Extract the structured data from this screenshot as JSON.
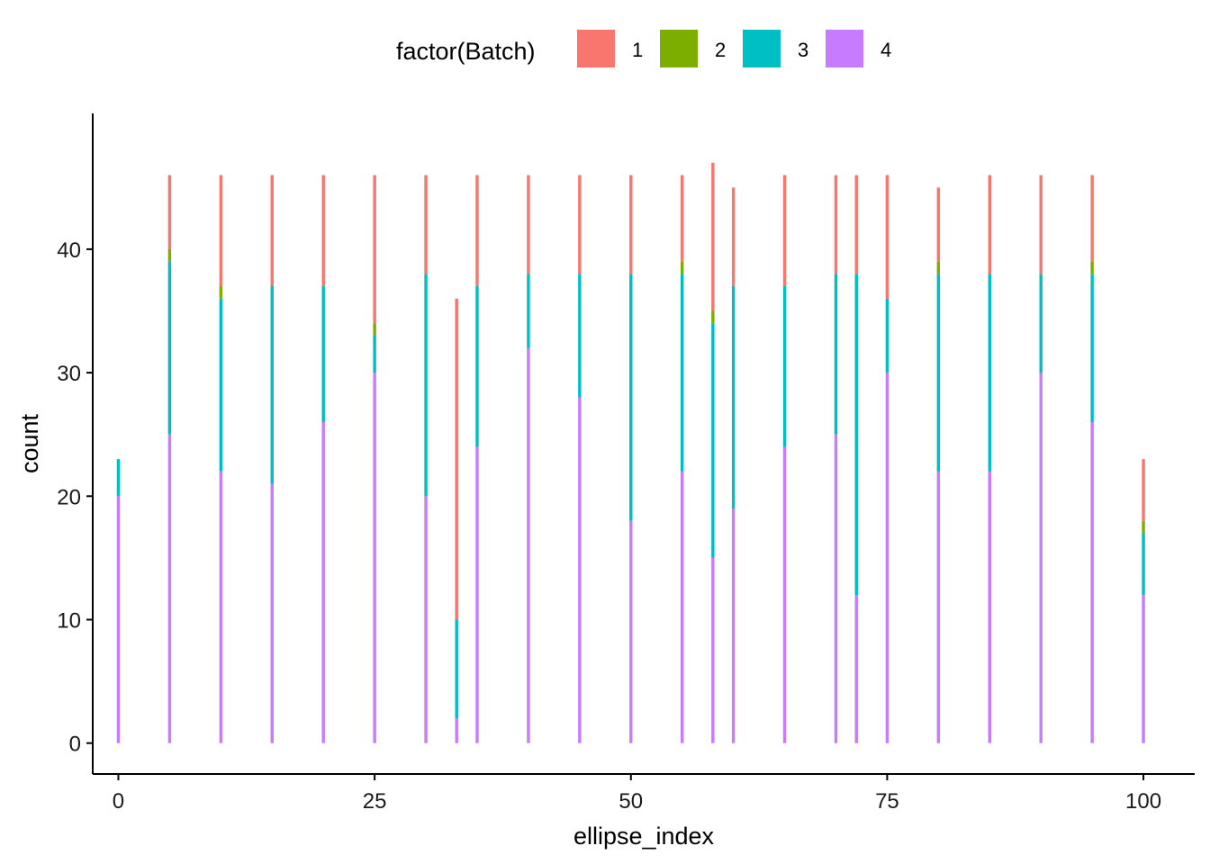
{
  "chart_data": {
    "type": "bar",
    "stacked": true,
    "xlabel": "ellipse_index",
    "ylabel": "count",
    "xlim": [
      -2.5,
      105
    ],
    "ylim": [
      -2.5,
      51
    ],
    "x_ticks": [
      0,
      25,
      50,
      75,
      100
    ],
    "y_ticks": [
      0,
      10,
      20,
      30,
      40
    ],
    "x_tick_labels": [
      "0",
      "25",
      "50",
      "75",
      "100"
    ],
    "y_tick_labels": [
      "0",
      "10",
      "20",
      "30",
      "40"
    ],
    "bin_width": 0.3,
    "grid": false,
    "legend": {
      "title": "factor(Batch)",
      "position": "top",
      "entries": [
        {
          "label": "1",
          "color": "#F8766D"
        },
        {
          "label": "2",
          "color": "#7CAE00"
        },
        {
          "label": "3",
          "color": "#00BFC4"
        },
        {
          "label": "4",
          "color": "#C77CFF"
        }
      ]
    },
    "x": [
      0,
      5,
      10,
      15,
      20,
      25,
      30,
      33,
      35,
      40,
      45,
      50,
      55,
      58,
      60,
      65,
      70,
      72,
      75,
      80,
      85,
      90,
      95,
      100
    ],
    "series": [
      {
        "name": "4",
        "color": "#C77CFF",
        "values": [
          20,
          25,
          22,
          21,
          26,
          30,
          20,
          2,
          24,
          32,
          28,
          18,
          22,
          15,
          19,
          24,
          25,
          12,
          30,
          22,
          22,
          30,
          26,
          12
        ]
      },
      {
        "name": "3",
        "color": "#00BFC4",
        "values": [
          3,
          14,
          14,
          16,
          11,
          3,
          18,
          8,
          13,
          6,
          10,
          20,
          16,
          19,
          18,
          13,
          13,
          26,
          6,
          16,
          16,
          8,
          12,
          5
        ]
      },
      {
        "name": "2",
        "color": "#7CAE00",
        "values": [
          0,
          1,
          1,
          0,
          0,
          1,
          0,
          0,
          0,
          0,
          0,
          0,
          1,
          1,
          0,
          0,
          0,
          0,
          0,
          1,
          0,
          0,
          1,
          1
        ]
      },
      {
        "name": "1",
        "color": "#F8766D",
        "values": [
          0,
          6,
          9,
          9,
          9,
          12,
          8,
          26,
          9,
          8,
          8,
          8,
          7,
          12,
          8,
          9,
          8,
          8,
          10,
          6,
          8,
          8,
          7,
          5
        ]
      }
    ]
  }
}
